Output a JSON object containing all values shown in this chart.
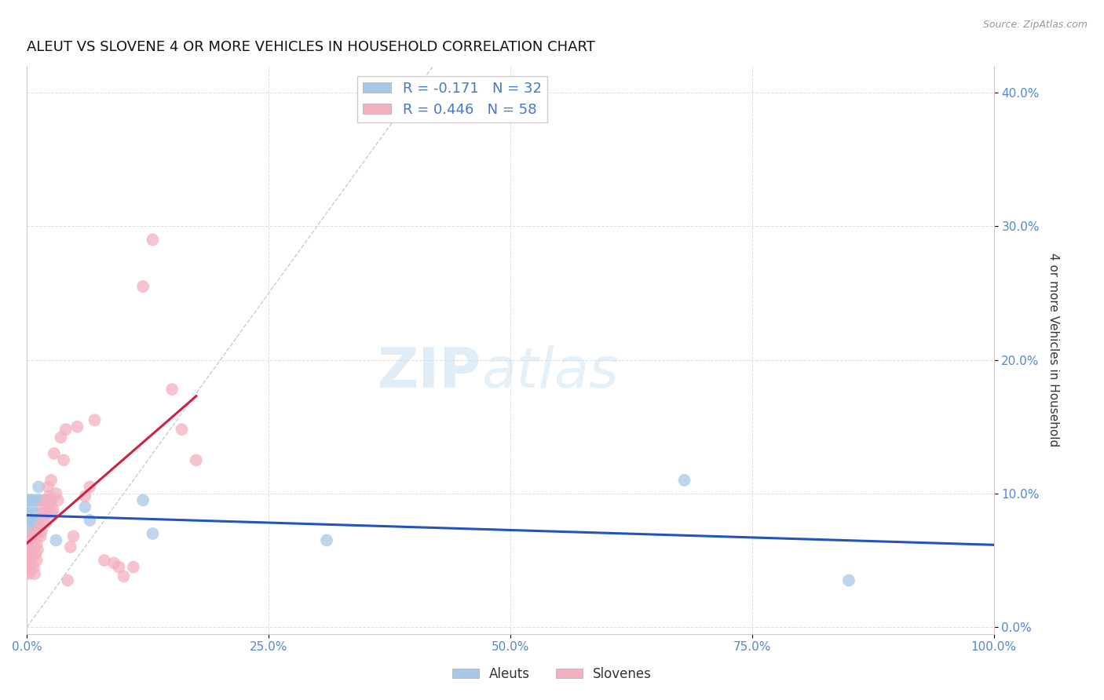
{
  "title": "ALEUT VS SLOVENE 4 OR MORE VEHICLES IN HOUSEHOLD CORRELATION CHART",
  "source": "Source: ZipAtlas.com",
  "ylabel": "4 or more Vehicles in Household",
  "xlim": [
    0.0,
    1.0
  ],
  "ylim": [
    -0.005,
    0.42
  ],
  "xticks": [
    0.0,
    0.25,
    0.5,
    0.75,
    1.0
  ],
  "xticklabels": [
    "0.0%",
    "25.0%",
    "50.0%",
    "75.0%",
    "100.0%"
  ],
  "yticks": [
    0.0,
    0.1,
    0.2,
    0.3,
    0.4
  ],
  "yticklabels": [
    "0.0%",
    "10.0%",
    "20.0%",
    "30.0%",
    "40.0%"
  ],
  "aleut_color": "#a8c8e8",
  "slovene_color": "#f4b0c0",
  "aleut_line_color": "#2255bb",
  "slovene_line_color": "#cc2244",
  "diagonal_color": "#cccccc",
  "background_color": "#ffffff",
  "grid_color": "#e0e0e0",
  "tick_color": "#5588cc",
  "aleut_R": -0.171,
  "aleut_N": 32,
  "slovene_R": 0.446,
  "slovene_N": 58,
  "aleut_x": [
    0.001,
    0.002,
    0.002,
    0.003,
    0.003,
    0.004,
    0.004,
    0.005,
    0.005,
    0.006,
    0.006,
    0.007,
    0.007,
    0.008,
    0.009,
    0.01,
    0.011,
    0.012,
    0.013,
    0.015,
    0.018,
    0.02,
    0.022,
    0.025,
    0.03,
    0.06,
    0.065,
    0.12,
    0.13,
    0.31,
    0.68,
    0.85
  ],
  "aleut_y": [
    0.085,
    0.095,
    0.065,
    0.08,
    0.06,
    0.075,
    0.095,
    0.07,
    0.09,
    0.08,
    0.065,
    0.085,
    0.095,
    0.075,
    0.07,
    0.08,
    0.095,
    0.105,
    0.095,
    0.085,
    0.095,
    0.085,
    0.095,
    0.095,
    0.065,
    0.09,
    0.08,
    0.095,
    0.07,
    0.065,
    0.11,
    0.035
  ],
  "slovene_x": [
    0.001,
    0.002,
    0.002,
    0.003,
    0.003,
    0.004,
    0.004,
    0.005,
    0.005,
    0.006,
    0.006,
    0.007,
    0.007,
    0.008,
    0.008,
    0.009,
    0.01,
    0.01,
    0.011,
    0.012,
    0.013,
    0.014,
    0.015,
    0.016,
    0.017,
    0.018,
    0.019,
    0.02,
    0.021,
    0.022,
    0.023,
    0.024,
    0.025,
    0.026,
    0.027,
    0.028,
    0.03,
    0.032,
    0.035,
    0.038,
    0.04,
    0.042,
    0.045,
    0.048,
    0.052,
    0.06,
    0.065,
    0.07,
    0.08,
    0.09,
    0.095,
    0.1,
    0.11,
    0.12,
    0.13,
    0.15,
    0.16,
    0.175
  ],
  "slovene_y": [
    0.045,
    0.05,
    0.04,
    0.055,
    0.042,
    0.048,
    0.06,
    0.052,
    0.065,
    0.058,
    0.07,
    0.062,
    0.045,
    0.068,
    0.04,
    0.055,
    0.05,
    0.062,
    0.058,
    0.07,
    0.075,
    0.068,
    0.072,
    0.09,
    0.082,
    0.085,
    0.078,
    0.095,
    0.088,
    0.105,
    0.098,
    0.092,
    0.11,
    0.085,
    0.088,
    0.13,
    0.1,
    0.095,
    0.142,
    0.125,
    0.148,
    0.035,
    0.06,
    0.068,
    0.15,
    0.098,
    0.105,
    0.155,
    0.05,
    0.048,
    0.045,
    0.038,
    0.045,
    0.255,
    0.29,
    0.178,
    0.148,
    0.125
  ],
  "watermark_zip": "ZIP",
  "watermark_atlas": "atlas",
  "title_fontsize": 13,
  "axis_label_fontsize": 11,
  "tick_fontsize": 11,
  "legend_fontsize": 13
}
